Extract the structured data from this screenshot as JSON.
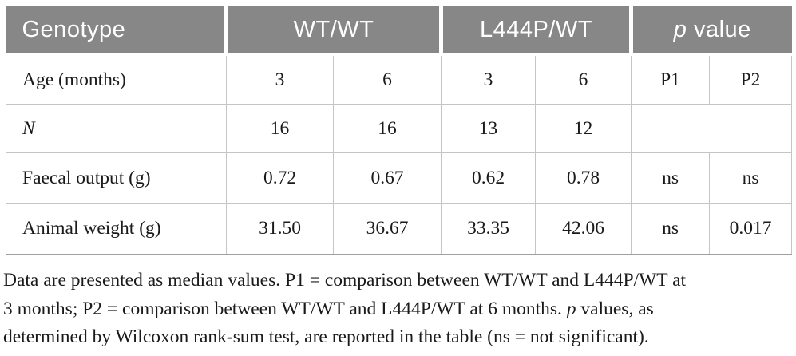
{
  "colors": {
    "header_bg": "#878787",
    "header_text": "#ffffff",
    "grid_border": "#c5c5c5",
    "outer_bottom_border": "#a0a0a0",
    "body_text": "#1a1a1a"
  },
  "table": {
    "header": {
      "genotype": "Genotype",
      "wt": "WT/WT",
      "l444p": "L444P/WT",
      "p_value_italic": "p",
      "p_value_rest": " value"
    },
    "rows": [
      {
        "label": "Age (months)",
        "cells": [
          "3",
          "6",
          "3",
          "6",
          "P1",
          "P2"
        ]
      },
      {
        "label": "N",
        "cells": [
          "16",
          "16",
          "13",
          "12",
          ""
        ]
      },
      {
        "label": "Faecal output (g)",
        "cells": [
          "0.72",
          "0.67",
          "0.62",
          "0.78",
          "ns",
          "ns"
        ]
      },
      {
        "label": "Animal weight (g)",
        "cells": [
          "31.50",
          "36.67",
          "33.35",
          "42.06",
          "ns",
          "0.017"
        ]
      }
    ]
  },
  "footnote": {
    "lines": [
      [
        {
          "t": "Data are presented as median values. P1 = comparison between WT/WT and L444P/WT at"
        }
      ],
      [
        {
          "t": "3 months; P2 = comparison between WT/WT and L444P/WT at 6 months. "
        },
        {
          "t": "p",
          "i": true
        },
        {
          "t": " values, as"
        }
      ],
      [
        {
          "t": "determined by Wilcoxon rank-sum test, are reported in the table (ns = not significant)."
        }
      ]
    ]
  }
}
